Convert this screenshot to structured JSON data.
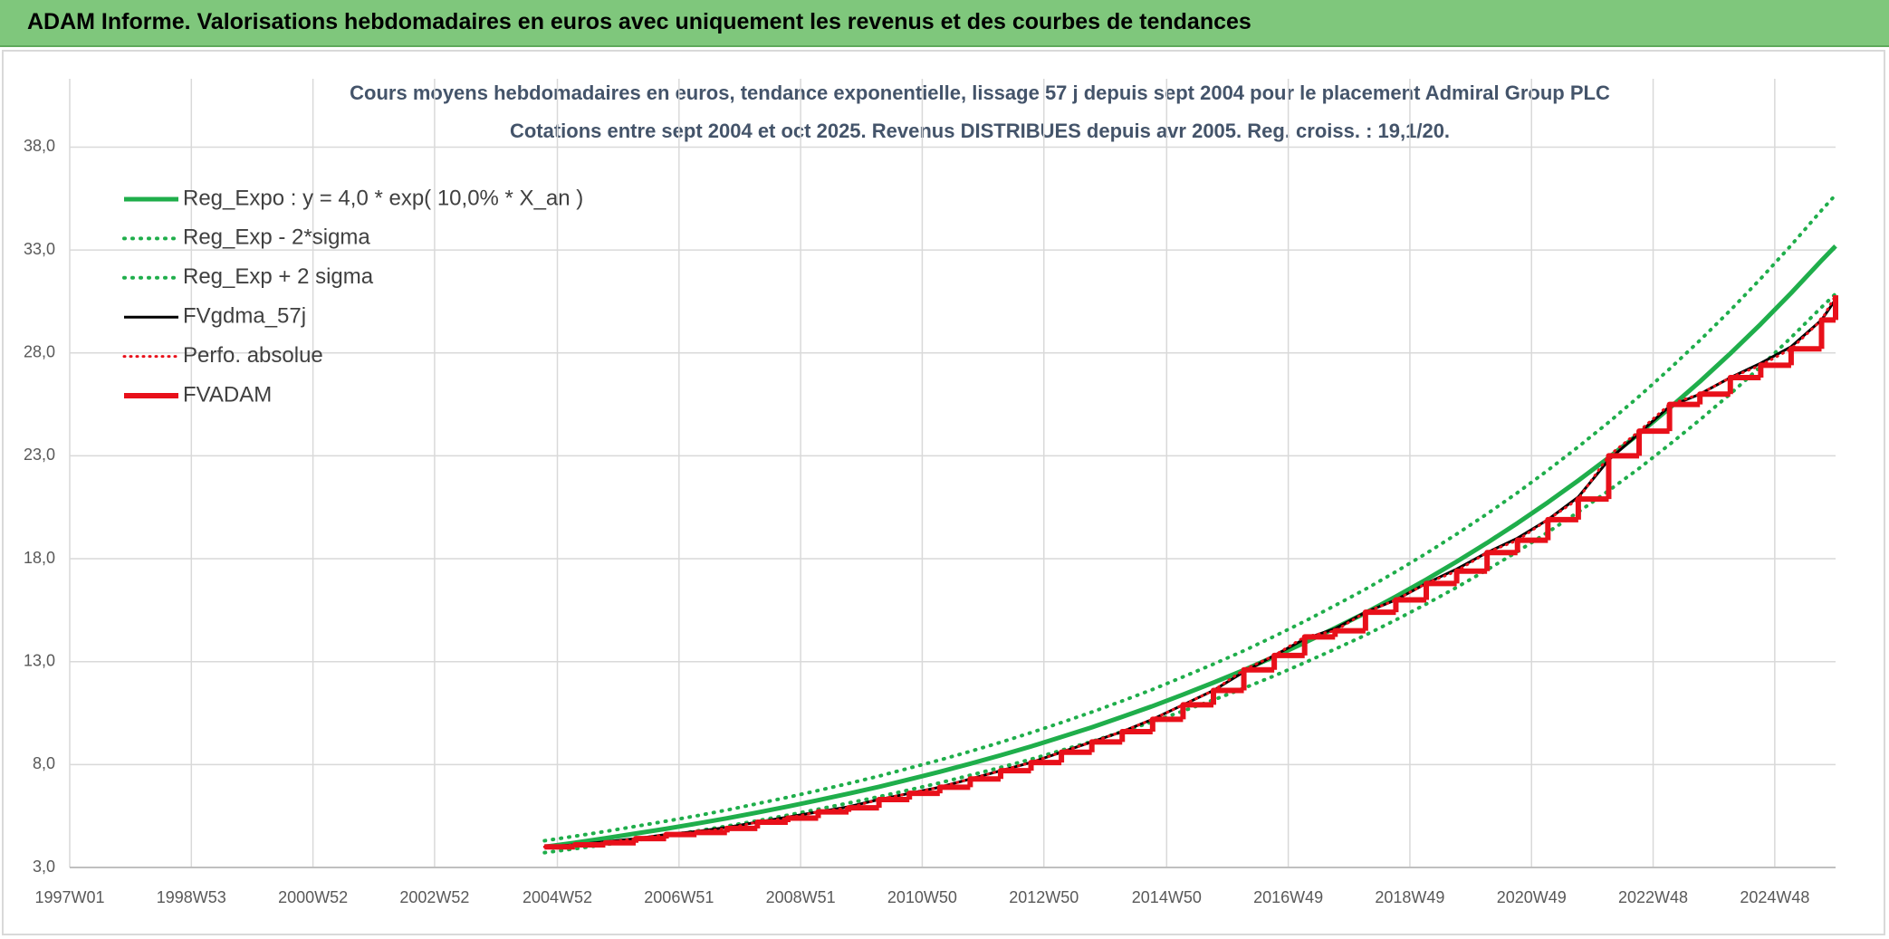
{
  "header": {
    "title": "ADAM Informe. Valorisations hebdomadaires en euros avec uniquement les revenus et des courbes de tendances"
  },
  "chart_data": {
    "type": "line",
    "title": "Cours moyens hebdomadaires en euros, tendance exponentielle, lissage 57 j depuis sept 2004 pour le placement Admiral Group PLC",
    "subtitle": "Cotations entre sept 2004 et oct 2025. Revenus DISTRIBUES depuis avr 2005. Reg. croiss. : 19,1/20.",
    "grid": true,
    "legend": "top-left",
    "xlim": [
      0,
      1510
    ],
    "xticks": [
      {
        "value": 0,
        "label": "1997W01"
      },
      {
        "value": 104,
        "label": "1998W53"
      },
      {
        "value": 208,
        "label": "2000W52"
      },
      {
        "value": 312,
        "label": "2002W52"
      },
      {
        "value": 417,
        "label": "2004W52"
      },
      {
        "value": 521,
        "label": "2006W51"
      },
      {
        "value": 625,
        "label": "2008W51"
      },
      {
        "value": 729,
        "label": "2010W50"
      },
      {
        "value": 833,
        "label": "2012W50"
      },
      {
        "value": 938,
        "label": "2014W50"
      },
      {
        "value": 1042,
        "label": "2016W49"
      },
      {
        "value": 1146,
        "label": "2018W49"
      },
      {
        "value": 1250,
        "label": "2020W49"
      },
      {
        "value": 1354,
        "label": "2022W48"
      },
      {
        "value": 1458,
        "label": "2024W48"
      }
    ],
    "ylim": [
      3,
      40
    ],
    "yticks": [
      {
        "value": 3,
        "label": "3,0"
      },
      {
        "value": 8,
        "label": "8,0"
      },
      {
        "value": 13,
        "label": "13,0"
      },
      {
        "value": 18,
        "label": "18,0"
      },
      {
        "value": 23,
        "label": "23,0"
      },
      {
        "value": 28,
        "label": "28,0"
      },
      {
        "value": 33,
        "label": "33,0"
      },
      {
        "value": 38,
        "label": "38,0"
      }
    ],
    "x": [
      406,
      432,
      458,
      484,
      510,
      536,
      562,
      588,
      614,
      640,
      666,
      692,
      718,
      744,
      770,
      796,
      822,
      848,
      874,
      900,
      926,
      952,
      978,
      1004,
      1030,
      1056,
      1082,
      1108,
      1134,
      1160,
      1186,
      1212,
      1238,
      1264,
      1290,
      1316,
      1342,
      1368,
      1394,
      1420,
      1446,
      1472,
      1498,
      1510
    ],
    "series": [
      {
        "name": "Reg_Expo : y = 4,0 * exp( 10,0% *  X_an )",
        "color": "#1fae4b",
        "line_style": "solid",
        "width": 5,
        "values": [
          4.0,
          4.2,
          4.42,
          4.65,
          4.88,
          5.13,
          5.39,
          5.67,
          5.96,
          6.27,
          6.59,
          6.92,
          7.28,
          7.65,
          8.04,
          8.45,
          8.88,
          9.34,
          9.81,
          10.32,
          10.84,
          11.4,
          11.98,
          12.59,
          13.24,
          13.92,
          14.63,
          15.37,
          16.16,
          16.99,
          17.86,
          18.77,
          19.73,
          20.74,
          21.8,
          22.91,
          24.08,
          25.32,
          26.61,
          27.97,
          29.4,
          30.91,
          32.49,
          33.19
        ]
      },
      {
        "name": "Reg_Exp - 2*sigma",
        "color": "#1fae4b",
        "line_style": "dotted",
        "width": 4,
        "values": [
          3.72,
          3.91,
          4.11,
          4.32,
          4.54,
          4.77,
          5.01,
          5.27,
          5.54,
          5.83,
          6.13,
          6.44,
          6.77,
          7.11,
          7.48,
          7.86,
          8.26,
          8.69,
          9.12,
          9.6,
          10.08,
          10.6,
          11.14,
          11.71,
          12.31,
          12.95,
          13.61,
          14.29,
          15.03,
          15.8,
          16.61,
          17.46,
          18.35,
          19.29,
          20.27,
          21.31,
          22.39,
          23.55,
          24.75,
          26.01,
          27.34,
          28.75,
          30.22,
          30.87
        ]
      },
      {
        "name": "Reg_Exp + 2 sigma",
        "color": "#1fae4b",
        "line_style": "dotted",
        "width": 4,
        "values": [
          4.3,
          4.52,
          4.75,
          5.0,
          5.25,
          5.51,
          5.79,
          6.1,
          6.41,
          6.74,
          7.08,
          7.44,
          7.83,
          8.22,
          8.64,
          9.08,
          9.55,
          10.04,
          10.55,
          11.09,
          11.65,
          12.26,
          12.88,
          13.53,
          14.23,
          14.96,
          15.73,
          16.52,
          17.37,
          18.26,
          19.2,
          20.18,
          21.21,
          22.3,
          23.44,
          24.63,
          25.89,
          27.22,
          28.61,
          30.07,
          31.61,
          33.23,
          34.93,
          35.68
        ]
      },
      {
        "name": "FVgdma_57j",
        "color": "#000000",
        "line_style": "solid",
        "width": 3,
        "values": [
          4.0,
          4.1,
          4.25,
          4.4,
          4.6,
          4.75,
          4.95,
          5.2,
          5.45,
          5.7,
          5.95,
          6.3,
          6.6,
          6.9,
          7.3,
          7.7,
          8.1,
          8.6,
          9.1,
          9.6,
          10.2,
          10.9,
          11.6,
          12.5,
          13.3,
          14.1,
          14.6,
          15.4,
          16.0,
          16.8,
          17.5,
          18.3,
          19.0,
          19.9,
          21.0,
          22.8,
          24.1,
          25.4,
          26.0,
          26.8,
          27.5,
          28.3,
          29.6,
          30.6
        ]
      },
      {
        "name": "Perfo. absolue",
        "color": "#e8101a",
        "line_style": "dotted",
        "width": 3,
        "values": [
          4.0,
          4.1,
          4.2,
          4.4,
          4.6,
          4.7,
          4.9,
          5.2,
          5.4,
          5.7,
          5.9,
          6.3,
          6.6,
          6.9,
          7.3,
          7.7,
          8.1,
          8.6,
          9.1,
          9.6,
          10.2,
          10.9,
          11.6,
          12.6,
          13.3,
          14.2,
          14.5,
          15.4,
          16.0,
          16.8,
          17.4,
          18.3,
          18.9,
          19.9,
          20.9,
          23.0,
          24.2,
          25.5,
          26.0,
          26.8,
          27.4,
          28.2,
          29.6,
          30.8
        ]
      },
      {
        "name": "FVADAM",
        "color": "#e8101a",
        "line_style": "solid",
        "width": 6,
        "step": true,
        "values": [
          4.0,
          4.1,
          4.2,
          4.4,
          4.6,
          4.7,
          4.9,
          5.2,
          5.4,
          5.7,
          5.9,
          6.3,
          6.6,
          6.9,
          7.3,
          7.7,
          8.1,
          8.6,
          9.1,
          9.6,
          10.2,
          10.9,
          11.6,
          12.6,
          13.3,
          14.2,
          14.5,
          15.4,
          16.0,
          16.8,
          17.4,
          18.3,
          18.9,
          19.9,
          20.9,
          23.0,
          24.2,
          25.5,
          26.0,
          26.8,
          27.4,
          28.2,
          29.6,
          30.8
        ]
      }
    ]
  }
}
